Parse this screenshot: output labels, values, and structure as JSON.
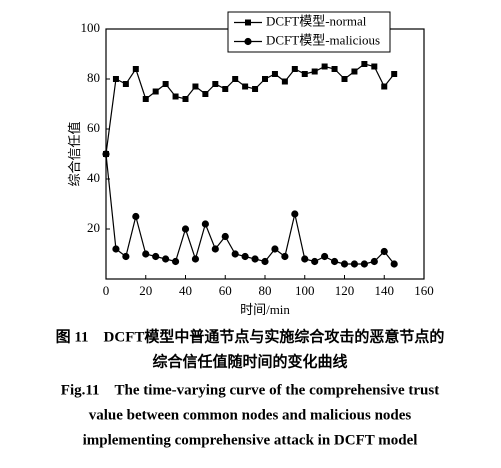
{
  "chart_data": {
    "type": "line",
    "xlabel": "时间/min",
    "ylabel": "综合信任值",
    "x": [
      0,
      5,
      10,
      15,
      20,
      25,
      30,
      35,
      40,
      45,
      50,
      55,
      60,
      65,
      70,
      75,
      80,
      85,
      90,
      95,
      100,
      105,
      110,
      115,
      120,
      125,
      130,
      135,
      140,
      145
    ],
    "series": [
      {
        "name": "DCFT模型-normal",
        "color": "#000000",
        "marker": "square",
        "values": [
          50,
          80,
          78,
          84,
          72,
          75,
          78,
          73,
          72,
          77,
          74,
          78,
          76,
          80,
          77,
          76,
          80,
          82,
          79,
          84,
          82,
          83,
          85,
          84,
          80,
          83,
          86,
          85,
          77,
          82
        ]
      },
      {
        "name": "DCFT模型-malicious",
        "color": "#000000",
        "marker": "circle",
        "values": [
          50,
          12,
          9,
          25,
          10,
          9,
          8,
          7,
          20,
          8,
          22,
          12,
          17,
          10,
          9,
          8,
          7,
          12,
          9,
          26,
          8,
          7,
          9,
          7,
          6,
          6,
          6,
          7,
          11,
          6
        ]
      }
    ],
    "xlim": [
      0,
      160
    ],
    "xticks": [
      0,
      20,
      40,
      60,
      80,
      100,
      120,
      140,
      160
    ],
    "ylim": [
      0,
      100
    ],
    "yticks": [
      20,
      40,
      60,
      80,
      100
    ],
    "legend": "top-right",
    "grid": false
  },
  "caption": {
    "cn": [
      "图 11　DCFT模型中普通节点与实施综合攻击的恶意节点的",
      "综合信任值随时间的变化曲线"
    ],
    "en": [
      "Fig.11　The time-varying curve of the comprehensive trust",
      "value between common nodes and malicious nodes",
      "implementing comprehensive attack in DCFT model"
    ]
  }
}
